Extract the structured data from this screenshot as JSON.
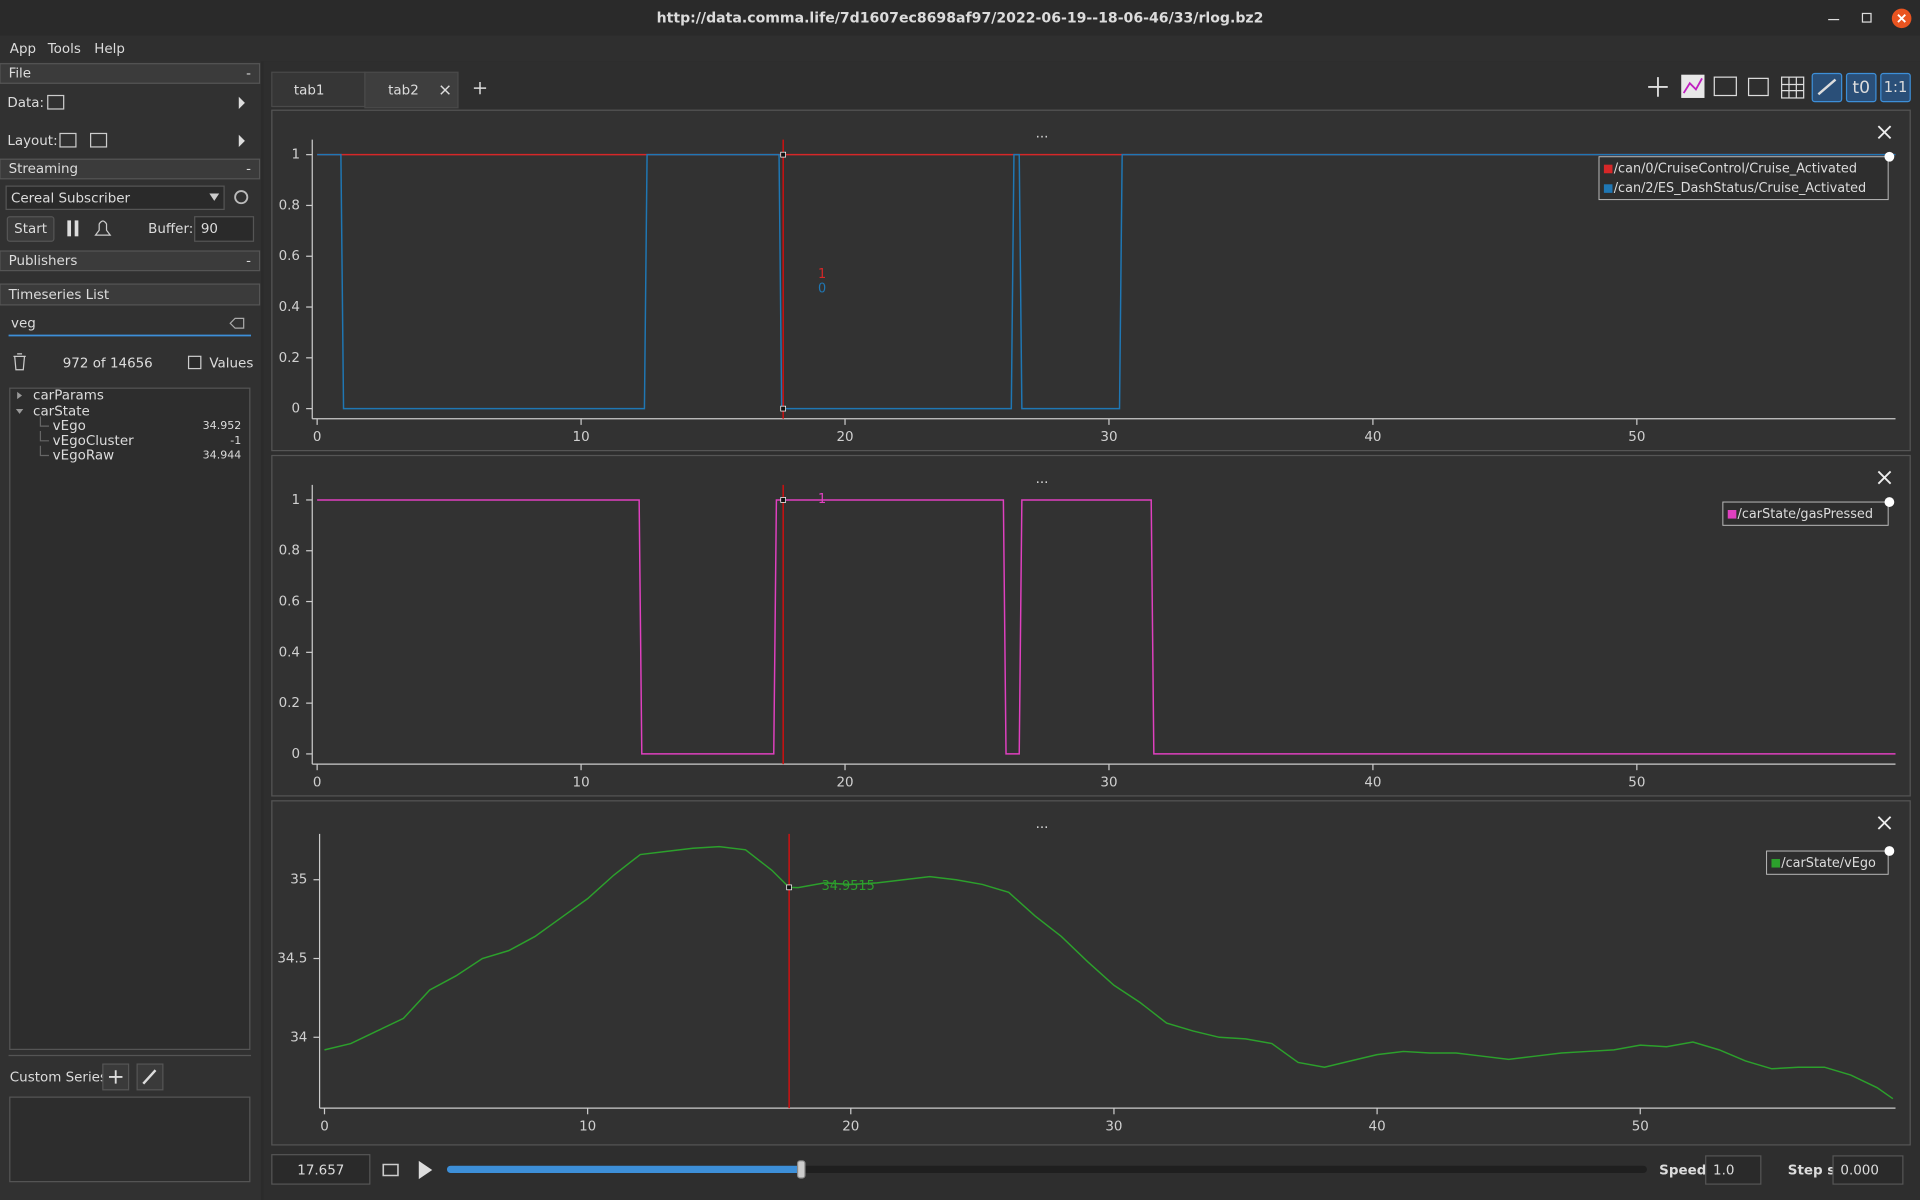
{
  "window": {
    "title": "http://data.comma.life/7d1607ec8698af97/2022-06-19--18-06-46/33/rlog.bz2"
  },
  "menu": [
    "App",
    "Tools",
    "Help"
  ],
  "sidebar": {
    "file": {
      "title": "File",
      "collapse": "-",
      "data_label": "Data:",
      "layout_label": "Layout:"
    },
    "streaming": {
      "title": "Streaming",
      "collapse": "-",
      "source": "Cereal Subscriber",
      "start": "Start",
      "buffer_label": "Buffer:",
      "buffer": "90"
    },
    "publishers": {
      "title": "Publishers",
      "collapse": "-"
    },
    "timeseries": {
      "title": "Timeseries List",
      "filter": "veg",
      "count": "972 of 14656",
      "values_label": "Values",
      "tree": [
        {
          "label": "carParams"
        },
        {
          "label": "carState"
        },
        {
          "label": "vEgo",
          "value": 34.952
        },
        {
          "label": "vEgoCluster",
          "value": -1
        },
        {
          "label": "vEgoRaw",
          "value": 34.944
        }
      ]
    },
    "custom_series": "Custom Series:"
  },
  "tabs": [
    "tab1",
    "tab2"
  ],
  "toolbar": {
    "t0": "t0",
    "ratio": "1:1"
  },
  "chart_data": [
    {
      "type": "line",
      "title": "...",
      "xlim": [
        0,
        59.8
      ],
      "xticks": [
        0,
        10,
        20,
        30,
        40,
        50
      ],
      "ylim": [
        -0.04,
        1.04
      ],
      "yticks": [
        0,
        0.2,
        0.4,
        0.6,
        0.8,
        1
      ],
      "series": [
        {
          "name": "/can/0/CruiseControl/Cruise_Activated",
          "color": "#d62728",
          "x": [
            0,
            59.8
          ],
          "values": [
            1,
            1
          ]
        },
        {
          "name": "/can/2/ES_DashStatus/Cruise_Activated",
          "color": "#1f77b4",
          "x": [
            0,
            0.9,
            1.0,
            12.4,
            12.5,
            17.5,
            17.6,
            26.3,
            26.4,
            26.6,
            26.7,
            30.4,
            30.5,
            59.8
          ],
          "values": [
            1,
            1,
            0,
            0,
            1,
            1,
            0,
            0,
            1,
            1,
            0,
            0,
            1,
            1
          ]
        }
      ],
      "tracker_values": [
        1,
        0
      ]
    },
    {
      "type": "line",
      "title": "...",
      "xlim": [
        0,
        59.8
      ],
      "xticks": [
        0,
        10,
        20,
        30,
        40,
        50
      ],
      "ylim": [
        -0.04,
        1.04
      ],
      "yticks": [
        0,
        0.2,
        0.4,
        0.6,
        0.8,
        1
      ],
      "series": [
        {
          "name": "/carState/gasPressed",
          "color": "#e040c0",
          "x": [
            0,
            12.2,
            12.3,
            17.3,
            17.4,
            26.0,
            26.1,
            26.6,
            26.7,
            31.6,
            31.7,
            59.8
          ],
          "values": [
            1,
            1,
            0,
            0,
            1,
            1,
            0,
            0,
            1,
            1,
            0,
            0
          ]
        }
      ],
      "tracker_values": [
        1
      ]
    },
    {
      "type": "line",
      "title": "...",
      "xlim": [
        0,
        59.7
      ],
      "xticks": [
        0,
        10,
        20,
        30,
        40,
        50
      ],
      "ylim": [
        33.55,
        35.26
      ],
      "yticks": [
        34,
        34.5,
        35
      ],
      "series": [
        {
          "name": "/carState/vEgo",
          "color": "#2ca02c",
          "x": [
            0,
            1,
            2,
            3,
            4,
            5,
            6,
            7,
            8,
            9,
            10,
            11,
            12,
            13,
            14,
            15,
            16,
            17,
            17.657,
            18,
            19,
            20,
            21,
            22,
            23,
            24,
            25,
            26,
            27,
            28,
            29,
            30,
            31,
            32,
            33,
            34,
            35,
            36,
            37,
            38,
            39,
            40,
            41,
            42,
            43,
            44,
            45,
            46,
            47,
            48,
            49,
            50,
            51,
            52,
            53,
            54,
            55,
            56,
            57,
            58,
            59,
            59.6
          ],
          "values": [
            33.92,
            33.96,
            34.04,
            34.12,
            34.3,
            34.39,
            34.5,
            34.55,
            34.64,
            34.76,
            34.88,
            35.03,
            35.16,
            35.18,
            35.2,
            35.21,
            35.19,
            35.06,
            34.9515,
            34.95,
            34.98,
            34.97,
            34.98,
            35.0,
            35.02,
            35.0,
            34.97,
            34.92,
            34.77,
            34.64,
            34.48,
            34.33,
            34.22,
            34.09,
            34.04,
            34.0,
            33.99,
            33.96,
            33.84,
            33.81,
            33.85,
            33.89,
            33.91,
            33.9,
            33.9,
            33.88,
            33.86,
            33.88,
            33.9,
            33.91,
            33.92,
            33.95,
            33.94,
            33.97,
            33.92,
            33.85,
            33.8,
            33.81,
            33.81,
            33.76,
            33.68,
            33.61
          ]
        }
      ],
      "tracker_values": [
        34.9515
      ]
    }
  ],
  "footer": {
    "time": 17.657,
    "speed_label": "Speed:",
    "speed": "1.0",
    "step_label": "Step size:",
    "step": "0.000"
  }
}
